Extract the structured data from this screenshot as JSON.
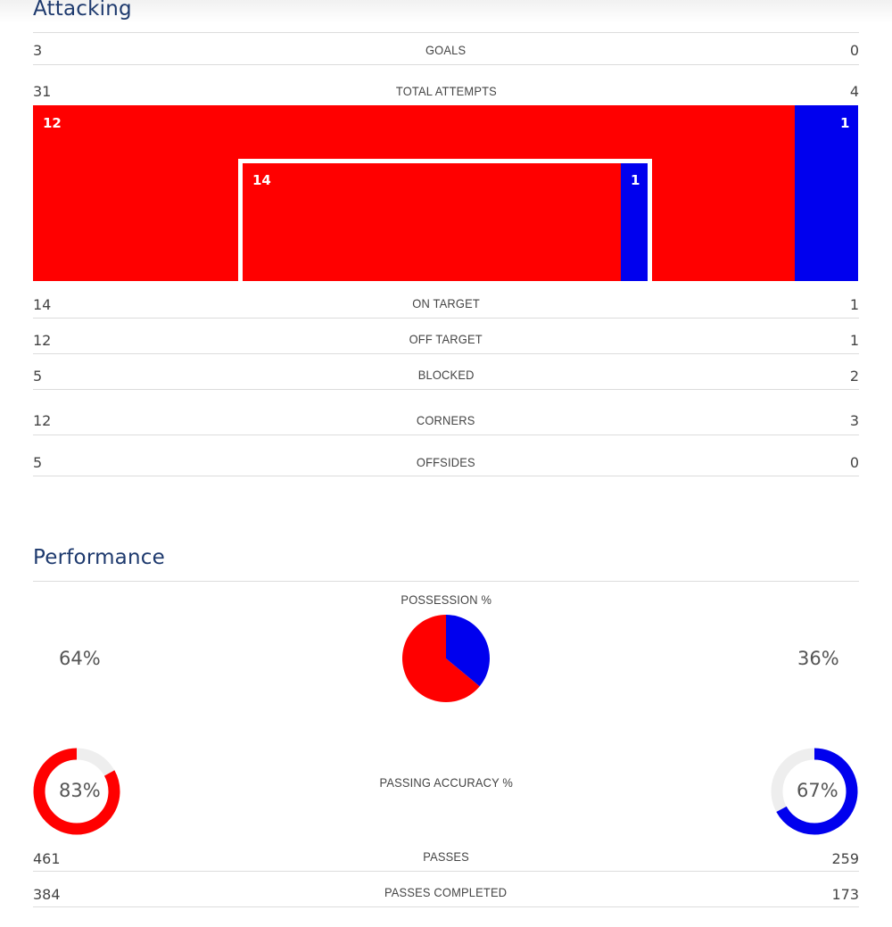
{
  "colors": {
    "home": "#ff0000",
    "away": "#0000ee",
    "track": "#eeeeee"
  },
  "attacking": {
    "title": "Attacking",
    "goals": {
      "label": "GOALS",
      "home": "3",
      "away": "0"
    },
    "total_attempts": {
      "label": "TOTAL ATTEMPTS",
      "home": "31",
      "away": "4"
    },
    "goal_graphic": {
      "outside_home": "12",
      "outside_away": "1",
      "inside_home": "14",
      "inside_away": "1"
    },
    "on_target": {
      "label": "ON TARGET",
      "home": "14",
      "away": "1"
    },
    "off_target": {
      "label": "OFF TARGET",
      "home": "12",
      "away": "1"
    },
    "blocked": {
      "label": "BLOCKED",
      "home": "5",
      "away": "2"
    },
    "corners": {
      "label": "CORNERS",
      "home": "12",
      "away": "3"
    },
    "offsides": {
      "label": "OFFSIDES",
      "home": "5",
      "away": "0"
    }
  },
  "performance": {
    "title": "Performance",
    "possession": {
      "label": "POSSESSION %",
      "home": "64%",
      "away": "36%",
      "home_value": 64,
      "away_value": 36
    },
    "passing_accuracy": {
      "label": "PASSING ACCURACY %",
      "home": "83%",
      "away": "67%",
      "home_value": 83,
      "away_value": 67
    },
    "passes": {
      "label": "PASSES",
      "home": "461",
      "away": "259"
    },
    "passes_completed": {
      "label": "PASSES COMPLETED",
      "home": "384",
      "away": "173"
    }
  }
}
